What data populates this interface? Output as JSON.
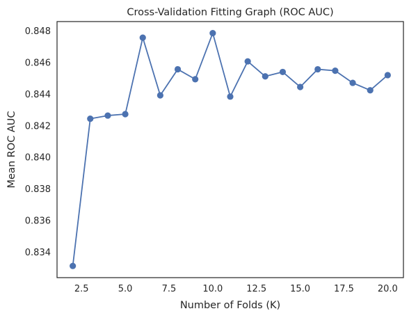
{
  "chart_data": {
    "type": "line",
    "title": "Cross-Validation Fitting Graph (ROC AUC)",
    "xlabel": "Number of Folds (K)",
    "ylabel": "Mean ROC AUC",
    "x": [
      2,
      3,
      4,
      5,
      6,
      7,
      8,
      9,
      10,
      11,
      12,
      13,
      14,
      15,
      16,
      17,
      18,
      19,
      20
    ],
    "series": [
      {
        "values": [
          0.83313,
          0.84245,
          0.84265,
          0.84274,
          0.84758,
          0.84393,
          0.84558,
          0.84495,
          0.84787,
          0.84385,
          0.84608,
          0.84513,
          0.84541,
          0.84446,
          0.84558,
          0.84549,
          0.84472,
          0.84425,
          0.84521
        ],
        "color": "#4c72b0",
        "marker": "circle"
      }
    ],
    "xlim": [
      1.1,
      20.9
    ],
    "ylim": [
      0.83239,
      0.8486
    ],
    "x_ticks": [
      2.5,
      5.0,
      7.5,
      10.0,
      12.5,
      15.0,
      17.5,
      20.0
    ],
    "x_tick_labels": [
      "2.5",
      "5.0",
      "7.5",
      "10.0",
      "12.5",
      "15.0",
      "17.5",
      "20.0"
    ],
    "y_ticks": [
      0.834,
      0.836,
      0.838,
      0.84,
      0.842,
      0.844,
      0.846,
      0.848
    ],
    "y_tick_labels": [
      "0.834",
      "0.836",
      "0.838",
      "0.840",
      "0.842",
      "0.844",
      "0.846",
      "0.848"
    ],
    "grid": false,
    "legend": "none",
    "background": "#ffffff",
    "frame_color": "#262626"
  }
}
